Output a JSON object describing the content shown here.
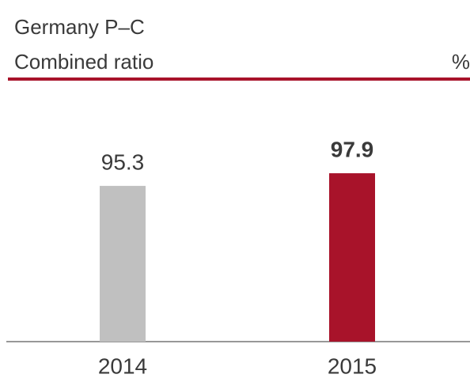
{
  "chart_data": {
    "type": "bar",
    "title": "Germany P–C",
    "subtitle": "Combined ratio",
    "unit": "%",
    "categories": [
      "2014",
      "2015"
    ],
    "values": [
      95.3,
      97.9
    ],
    "colors": [
      "#c0c0c0",
      "#a8132a"
    ],
    "bold_labels": [
      false,
      true
    ],
    "ylim": [
      63.3,
      114
    ]
  }
}
